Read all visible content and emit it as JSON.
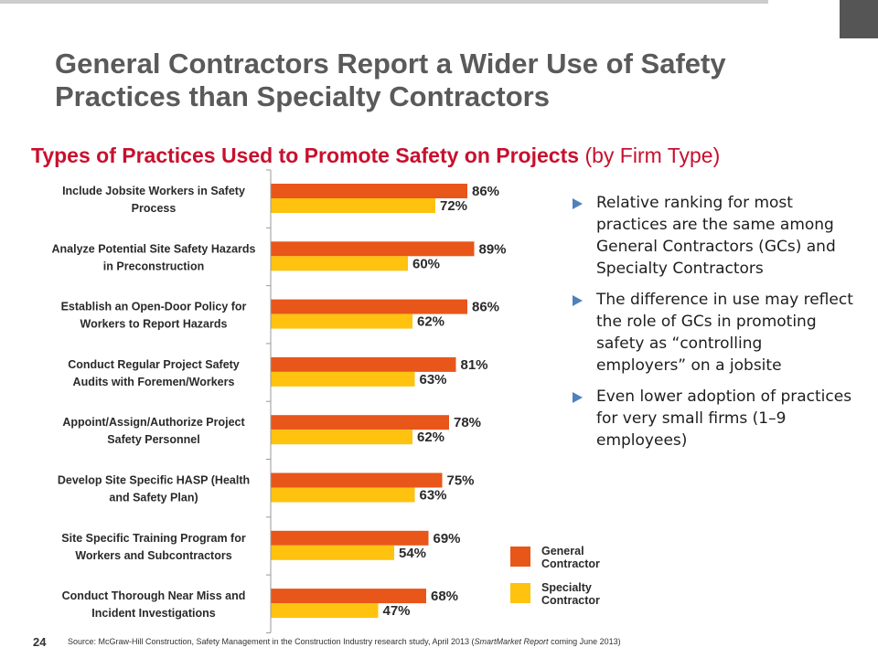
{
  "slide": {
    "title": "General Contractors Report a Wider Use of Safety Practices than Specialty Contractors",
    "page_number": "24",
    "source_prefix": "Source: McGraw-Hill Construction, Safety Management in the Construction Industry research study, April 2013 (",
    "source_italic": "SmartMarket Report",
    "source_suffix": " coming June 2013)"
  },
  "chart_data": {
    "type": "bar",
    "orientation": "horizontal",
    "title": "Types of Practices Used to Promote Safety on Projects",
    "subtitle": "(by Firm Type)",
    "categories": [
      "Include Jobsite Workers in Safety Process",
      "Analyze Potential Site Safety Hazards in Preconstruction",
      "Establish an Open-Door Policy for Workers to Report Hazards",
      "Conduct Regular Project Safety Audits with Foremen/Workers",
      "Appoint/Assign/Authorize Project Safety Personnel",
      "Develop Site Specific HASP (Health and Safety Plan)",
      "Site Specific Training Program for Workers and Subcontractors",
      "Conduct Thorough Near Miss and Incident Investigations"
    ],
    "category_lines": [
      [
        "Include Jobsite Workers in Safety",
        "Process"
      ],
      [
        "Analyze Potential Site Safety Hazards",
        "in Preconstruction"
      ],
      [
        "Establish an Open-Door Policy for",
        "Workers to Report Hazards"
      ],
      [
        "Conduct Regular Project Safety",
        "Audits with Foremen/Workers"
      ],
      [
        "Appoint/Assign/Authorize Project",
        "Safety Personnel"
      ],
      [
        "Develop Site Specific HASP (Health",
        "and Safety Plan)"
      ],
      [
        "Site Specific Training Program for",
        "Workers and Subcontractors"
      ],
      [
        "Conduct Thorough Near Miss and",
        "Incident Investigations"
      ]
    ],
    "series": [
      {
        "name": "General Contractor",
        "color": "#e8561a",
        "values": [
          86,
          89,
          86,
          81,
          78,
          75,
          69,
          68
        ]
      },
      {
        "name": "Specialty Contractor",
        "color": "#ffc20e",
        "values": [
          72,
          60,
          62,
          63,
          62,
          63,
          54,
          47
        ]
      }
    ],
    "value_suffix": "%",
    "xlim": [
      0,
      100
    ],
    "grid": false,
    "legend_position": "bottom-right"
  },
  "bullets": [
    "Relative ranking for most practices are the same among General Contractors (GCs) and Specialty Contractors",
    "The difference in use may reflect the role of GCs in promoting safety as “controlling employers” on a jobsite",
    "Even lower adoption of practices for very small firms (1–9 employees)"
  ],
  "legend": [
    {
      "label_lines": [
        "General",
        "Contractor"
      ],
      "color": "#e8561a"
    },
    {
      "label_lines": [
        "Specialty",
        "Contractor"
      ],
      "color": "#ffc20e"
    }
  ],
  "colors": {
    "title_gray": "#5a5a5a",
    "accent_red": "#c8102e",
    "bullet_blue": "#4f81bd"
  }
}
